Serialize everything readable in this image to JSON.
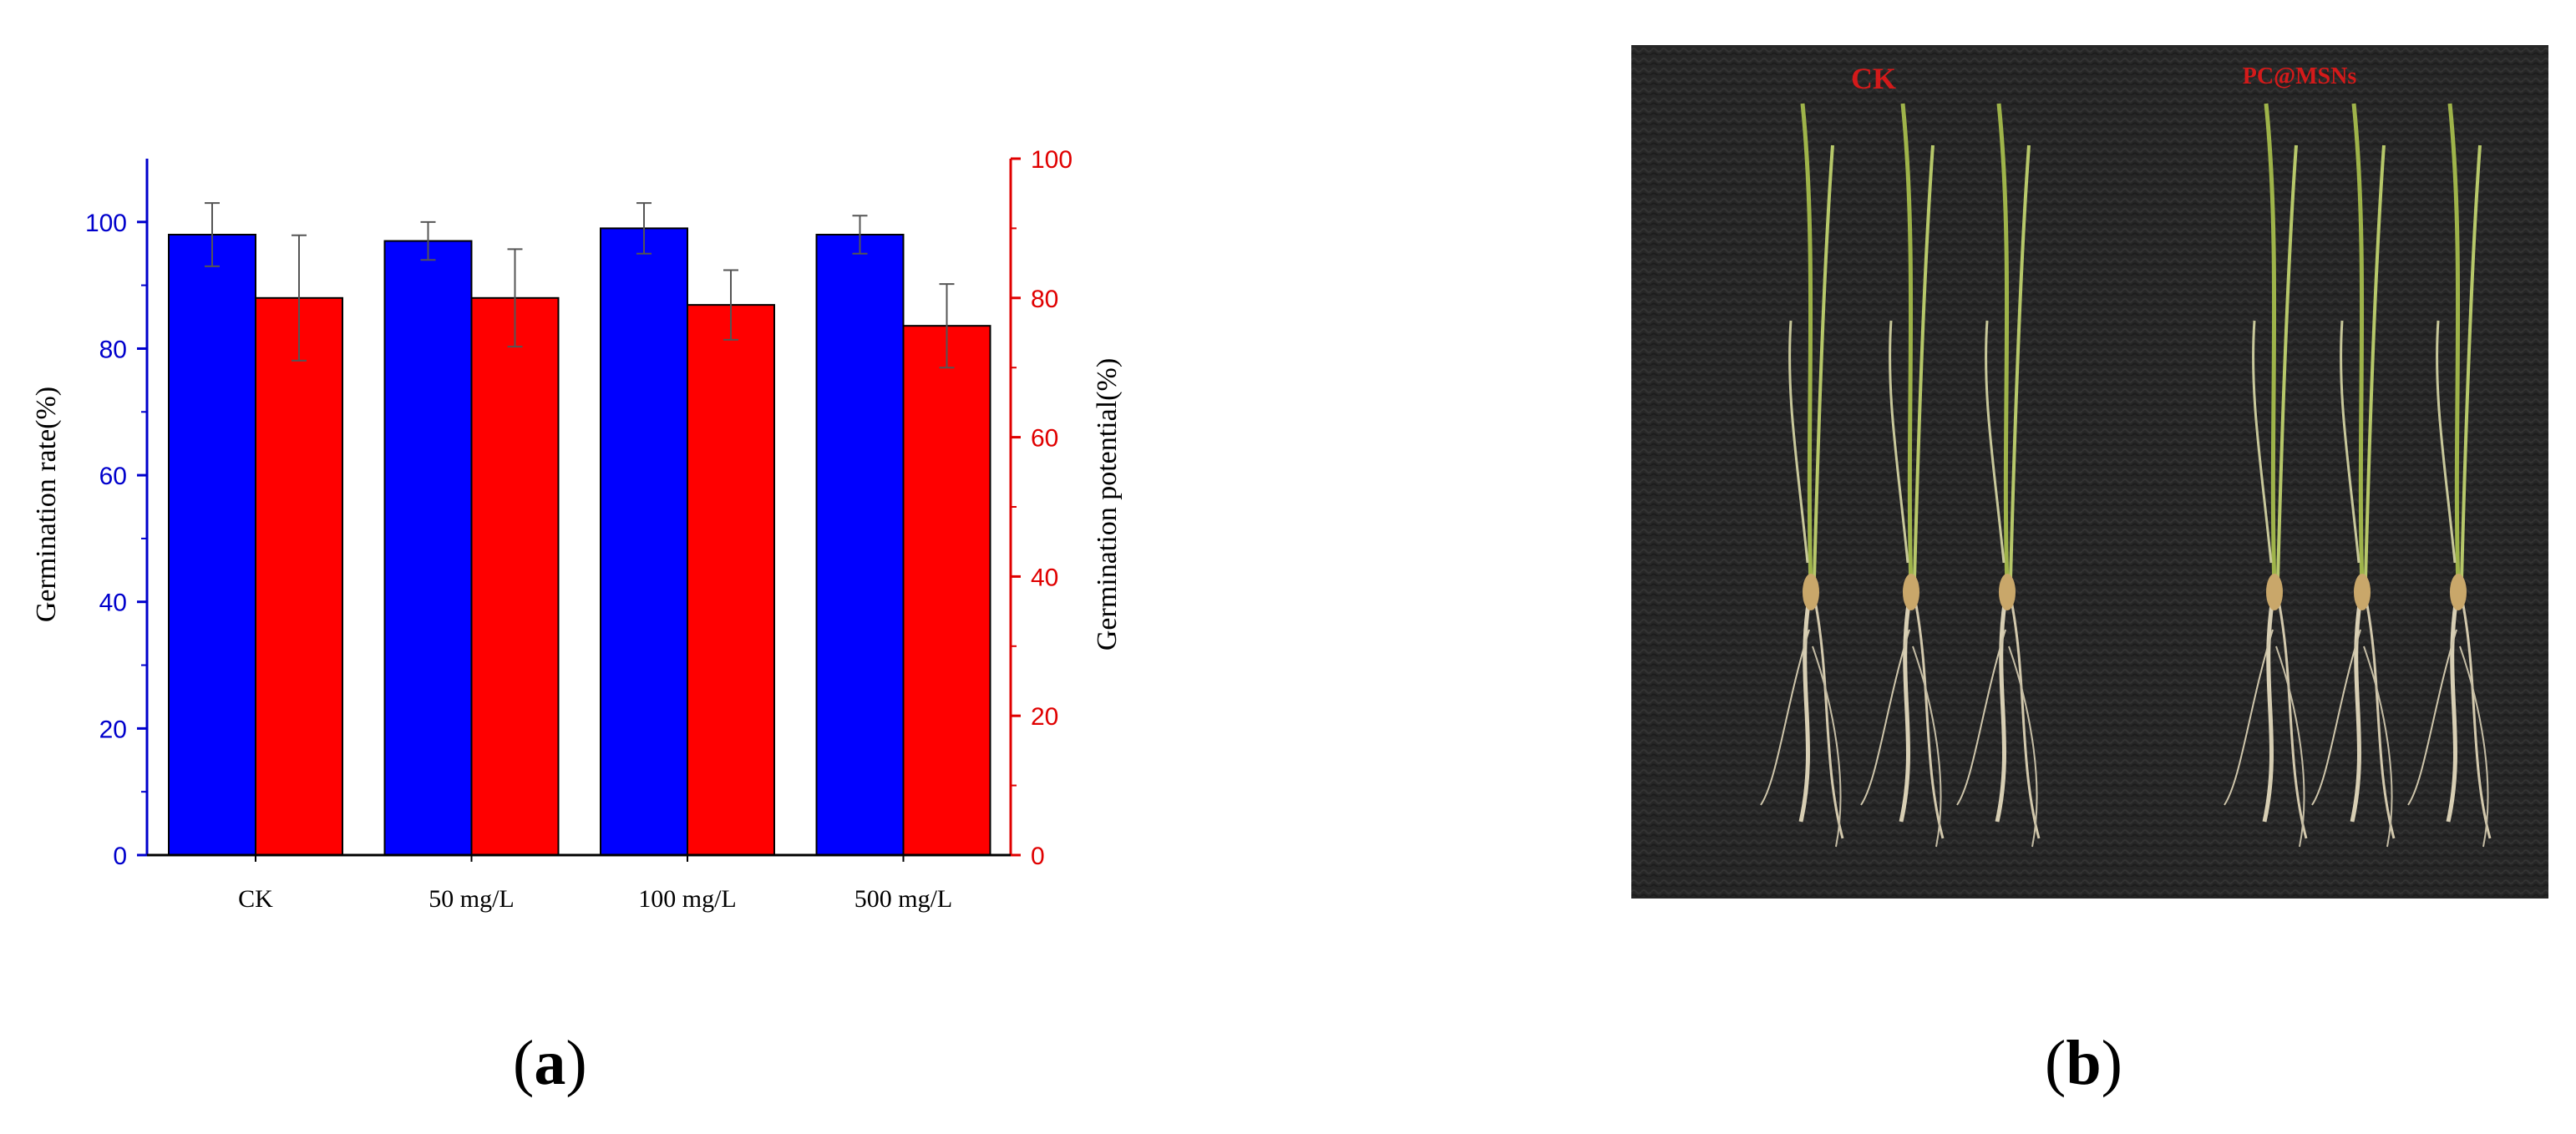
{
  "chart_data": {
    "type": "bar",
    "categories": [
      "CK",
      "50 mg/L",
      "100 mg/L",
      "500 mg/L"
    ],
    "series": [
      {
        "axis": "left",
        "color": "#0000ff",
        "values": [
          98,
          97,
          99,
          98
        ],
        "errors": [
          5,
          3,
          4,
          3
        ]
      },
      {
        "axis": "right",
        "color": "#ff0000",
        "values": [
          80,
          80,
          79,
          76
        ],
        "errors": [
          9,
          7,
          5,
          6
        ]
      }
    ],
    "ylabel": "Germination rate(%)",
    "ylabel_right": "Germination potential(%)",
    "ylim": [
      0,
      110
    ],
    "ylim_right": [
      0,
      100
    ],
    "yticks": [
      0,
      20,
      40,
      60,
      80,
      100
    ],
    "yticks_right": [
      0,
      20,
      40,
      60,
      80,
      100
    ],
    "left_axis_color": "#0000cc",
    "right_axis_color": "#e00000",
    "grid": false
  },
  "panels": {
    "a_open": "(",
    "a_letter": "a",
    "a_close": ")",
    "b_open": "(",
    "b_letter": "b",
    "b_close": ")"
  },
  "photo": {
    "label_left": "CK",
    "label_right": "PC@MSNs",
    "label_color": "#d41a1a",
    "background_color": "#262626"
  }
}
